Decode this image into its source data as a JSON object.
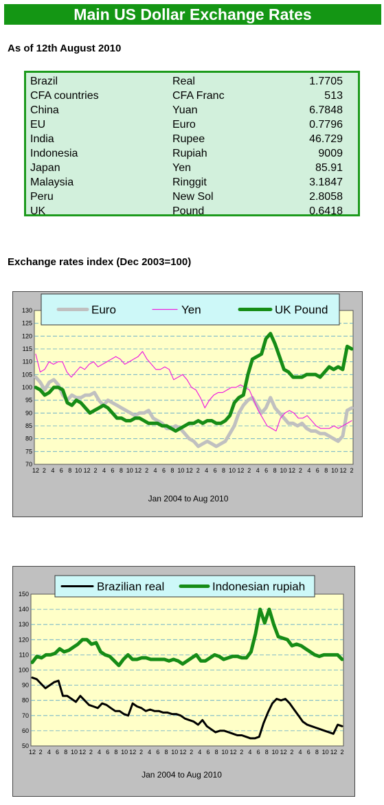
{
  "header": {
    "title": "Main US Dollar Exchange Rates",
    "as_of": "As of 12th August 2010"
  },
  "rates_table": [
    {
      "country": "Brazil",
      "currency": "Real",
      "rate": "1.7705"
    },
    {
      "country": "CFA countries",
      "currency": "CFA Franc",
      "rate": "513"
    },
    {
      "country": "China",
      "currency": "Yuan",
      "rate": "6.7848"
    },
    {
      "country": "EU",
      "currency": "Euro",
      "rate": "0.7796"
    },
    {
      "country": "India",
      "currency": "Rupee",
      "rate": "46.729"
    },
    {
      "country": "Indonesia",
      "currency": "Rupiah",
      "rate": "9009"
    },
    {
      "country": "Japan",
      "currency": "Yen",
      "rate": "85.91"
    },
    {
      "country": "Malaysia",
      "currency": "Ringgit",
      "rate": "3.1847"
    },
    {
      "country": "Peru",
      "currency": "New Sol",
      "rate": "2.8058"
    },
    {
      "country": "UK",
      "currency": "Pound",
      "rate": "0.6418"
    }
  ],
  "colors": {
    "banner": "#149614",
    "table_bg": "#d2f0dc",
    "plot_bg": "#ffffc8",
    "legend_bg": "#cdf8f8",
    "euro": "#c0c0c0",
    "yen": "#ee22dd",
    "pound": "#168c16",
    "real": "#000000",
    "rupiah": "#168c16"
  },
  "chart_data": [
    {
      "type": "line",
      "title": "Exchange rates index (Dec 2003=100)",
      "xlabel": "Jan 2004 to Aug 2010",
      "ylabel": "",
      "ylim": [
        70,
        130
      ],
      "yticks": [
        70,
        75,
        80,
        85,
        90,
        95,
        100,
        105,
        110,
        115,
        120,
        125,
        130
      ],
      "xticks": [
        "12",
        "2",
        "4",
        "6",
        "8",
        "10",
        "12",
        "2",
        "4",
        "6",
        "8",
        "10",
        "12",
        "2",
        "4",
        "6",
        "8",
        "10",
        "12",
        "2",
        "4",
        "6",
        "8",
        "10",
        "12",
        "2",
        "4",
        "6",
        "8",
        "10",
        "12",
        "2",
        "4",
        "6",
        "8",
        "10",
        "12",
        "2"
      ],
      "grid": true,
      "legend": "top",
      "series": [
        {
          "name": "Euro",
          "values": [
            104,
            102,
            99,
            102,
            103,
            101,
            97,
            95,
            97,
            96,
            96,
            97,
            97,
            98,
            95,
            93,
            95,
            94,
            93,
            92,
            91,
            90,
            89,
            90,
            90,
            91,
            88,
            87,
            86,
            84,
            84,
            85,
            84,
            82,
            80,
            79,
            77,
            78,
            79,
            78,
            77,
            78,
            79,
            82,
            85,
            90,
            93,
            95,
            96,
            93,
            90,
            92,
            96,
            92,
            90,
            88,
            86,
            86,
            85,
            86,
            84,
            83,
            83,
            82,
            82,
            81,
            80,
            79,
            81,
            91,
            92
          ]
        },
        {
          "name": "Yen",
          "values": [
            113,
            106,
            107,
            110,
            109,
            110,
            110,
            106,
            104,
            106,
            108,
            107,
            109,
            110,
            108,
            109,
            110,
            111,
            112,
            111,
            109,
            110,
            111,
            112,
            114,
            111,
            109,
            107,
            107,
            108,
            107,
            103,
            104,
            105,
            103,
            100,
            99,
            96,
            92,
            95,
            97,
            98,
            98,
            99,
            100,
            100,
            101,
            100,
            99,
            95,
            91,
            88,
            85,
            84,
            83,
            88,
            90,
            91,
            90,
            88,
            88,
            89,
            87,
            85,
            84,
            84,
            84,
            85,
            84,
            85,
            86,
            87
          ]
        },
        {
          "name": "UK Pound",
          "values": [
            100,
            99,
            97,
            98,
            100,
            100,
            99,
            94,
            93,
            95,
            94,
            92,
            90,
            91,
            92,
            93,
            92,
            90,
            88,
            88,
            87,
            87,
            88,
            88,
            87,
            86,
            86,
            86,
            85,
            85,
            84,
            83,
            84,
            85,
            86,
            86,
            87,
            86,
            87,
            87,
            86,
            86,
            87,
            89,
            94,
            96,
            97,
            105,
            111,
            112,
            113,
            119,
            121,
            117,
            112,
            107,
            106,
            104,
            104,
            104,
            105,
            105,
            105,
            104,
            106,
            108,
            107,
            108,
            107,
            116,
            115
          ]
        }
      ]
    },
    {
      "type": "line",
      "title": "",
      "xlabel": "Jan 2004 to Aug 2010",
      "ylabel": "",
      "ylim": [
        50,
        150
      ],
      "yticks": [
        50,
        60,
        70,
        80,
        90,
        100,
        110,
        120,
        130,
        140,
        150
      ],
      "xticks": [
        "12",
        "2",
        "4",
        "6",
        "8",
        "10",
        "12",
        "2",
        "4",
        "6",
        "8",
        "10",
        "12",
        "2",
        "4",
        "6",
        "8",
        "10",
        "12",
        "2",
        "4",
        "6",
        "8",
        "10",
        "12",
        "2",
        "4",
        "6",
        "8",
        "10",
        "12",
        "2",
        "4",
        "6",
        "8",
        "10",
        "12",
        "2"
      ],
      "grid": true,
      "legend": "top",
      "series": [
        {
          "name": "Brazilian real",
          "values": [
            95,
            94,
            91,
            88,
            90,
            92,
            93,
            83,
            83,
            81,
            79,
            83,
            80,
            77,
            76,
            75,
            78,
            77,
            75,
            73,
            73,
            71,
            70,
            78,
            76,
            75,
            73,
            74,
            73,
            73,
            72,
            72,
            71,
            71,
            70,
            68,
            67,
            66,
            64,
            67,
            63,
            61,
            59,
            60,
            60,
            59,
            58,
            57,
            57,
            56,
            55,
            55,
            56,
            65,
            72,
            78,
            81,
            80,
            81,
            78,
            74,
            70,
            66,
            64,
            63,
            62,
            61,
            60,
            59,
            58,
            64,
            63
          ]
        },
        {
          "name": "Indonesian rupiah",
          "values": [
            105,
            109,
            108,
            110,
            110,
            111,
            114,
            112,
            113,
            115,
            117,
            120,
            120,
            117,
            118,
            112,
            110,
            109,
            106,
            103,
            107,
            110,
            107,
            107,
            108,
            108,
            107,
            107,
            107,
            107,
            106,
            107,
            106,
            104,
            106,
            108,
            110,
            106,
            106,
            108,
            110,
            109,
            107,
            108,
            109,
            109,
            108,
            108,
            112,
            124,
            140,
            131,
            140,
            130,
            122,
            121,
            120,
            116,
            117,
            116,
            114,
            112,
            110,
            109,
            110,
            110,
            110,
            110,
            107
          ]
        }
      ]
    }
  ]
}
